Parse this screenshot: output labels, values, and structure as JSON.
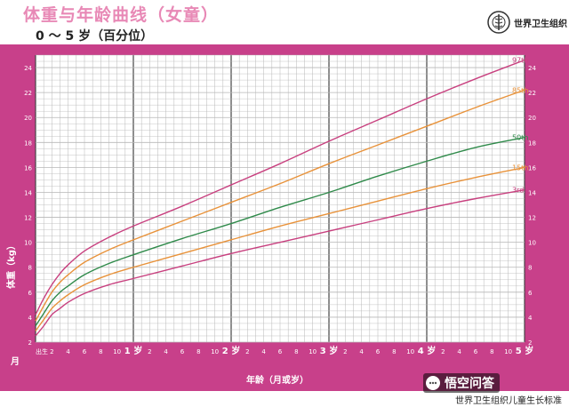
{
  "header": {
    "title": "体重与年龄曲线（女童）",
    "subtitle": "0 ～ 5 岁（百分位）",
    "org_name": "世界卫生组织"
  },
  "footer": {
    "source": "世界卫生组织儿童生长标准",
    "watermark": "悟空问答"
  },
  "colors": {
    "frame": "#c8408a",
    "title": "#e889b6",
    "grid_major": "#444444",
    "grid_minor": "#b7b7b7",
    "p97": "#c8407f",
    "p85": "#e8923a",
    "p50": "#2f8a4a",
    "p15": "#e8923a",
    "p3": "#c8407f"
  },
  "chart_data": {
    "type": "line",
    "title": "体重与年龄曲线（女童）",
    "subtitle": "0 ～ 5 岁（百分位）",
    "xlabel": "年龄（月或岁）",
    "ylabel": "体重（kg）",
    "x_unit_label": "月",
    "x_start_label": "出生",
    "xlim": [
      0,
      60
    ],
    "ylim": [
      2,
      25
    ],
    "grid": true,
    "y_ticks": [
      2,
      4,
      6,
      8,
      10,
      12,
      14,
      16,
      18,
      20,
      22,
      24
    ],
    "x_ticks": [
      {
        "m": 0,
        "label": "出生"
      },
      {
        "m": 2,
        "label": "2"
      },
      {
        "m": 4,
        "label": "4"
      },
      {
        "m": 6,
        "label": "6"
      },
      {
        "m": 8,
        "label": "8"
      },
      {
        "m": 10,
        "label": "10"
      },
      {
        "m": 12,
        "label": "1 岁"
      },
      {
        "m": 14,
        "label": "2"
      },
      {
        "m": 16,
        "label": "4"
      },
      {
        "m": 18,
        "label": "6"
      },
      {
        "m": 20,
        "label": "8"
      },
      {
        "m": 22,
        "label": "10"
      },
      {
        "m": 24,
        "label": "2 岁"
      },
      {
        "m": 26,
        "label": "2"
      },
      {
        "m": 28,
        "label": "4"
      },
      {
        "m": 30,
        "label": "6"
      },
      {
        "m": 32,
        "label": "8"
      },
      {
        "m": 34,
        "label": "10"
      },
      {
        "m": 36,
        "label": "3 岁"
      },
      {
        "m": 38,
        "label": "2"
      },
      {
        "m": 40,
        "label": "4"
      },
      {
        "m": 42,
        "label": "6"
      },
      {
        "m": 44,
        "label": "8"
      },
      {
        "m": 46,
        "label": "10"
      },
      {
        "m": 48,
        "label": "4 岁"
      },
      {
        "m": 50,
        "label": "2"
      },
      {
        "m": 52,
        "label": "4"
      },
      {
        "m": 54,
        "label": "6"
      },
      {
        "m": 56,
        "label": "8"
      },
      {
        "m": 58,
        "label": "10"
      },
      {
        "m": 60,
        "label": "5 岁"
      }
    ],
    "x": [
      0,
      1,
      2,
      3,
      4,
      6,
      9,
      12,
      18,
      24,
      30,
      36,
      42,
      48,
      54,
      60
    ],
    "series": [
      {
        "name": "97th",
        "color": "#c8407f",
        "values": [
          4.2,
          5.5,
          6.6,
          7.5,
          8.2,
          9.3,
          10.4,
          11.3,
          12.9,
          14.6,
          16.3,
          18.1,
          19.8,
          21.5,
          23.1,
          24.6
        ]
      },
      {
        "name": "85th",
        "color": "#e8923a",
        "values": [
          3.7,
          4.9,
          6.0,
          6.8,
          7.4,
          8.4,
          9.4,
          10.2,
          11.7,
          13.2,
          14.7,
          16.3,
          17.8,
          19.3,
          20.8,
          22.2
        ]
      },
      {
        "name": "50th",
        "color": "#2f8a4a",
        "values": [
          3.3,
          4.3,
          5.3,
          6.0,
          6.5,
          7.4,
          8.3,
          9.0,
          10.3,
          11.5,
          12.8,
          14.0,
          15.3,
          16.5,
          17.6,
          18.4
        ]
      },
      {
        "name": "15th",
        "color": "#e8923a",
        "values": [
          2.9,
          3.8,
          4.7,
          5.3,
          5.8,
          6.6,
          7.4,
          8.0,
          9.1,
          10.2,
          11.3,
          12.3,
          13.3,
          14.3,
          15.2,
          16.0
        ]
      },
      {
        "name": "3rd",
        "color": "#c8407f",
        "values": [
          2.5,
          3.3,
          4.2,
          4.7,
          5.2,
          5.9,
          6.6,
          7.1,
          8.1,
          9.1,
          10.0,
          10.9,
          11.8,
          12.7,
          13.5,
          14.2
        ]
      }
    ]
  }
}
